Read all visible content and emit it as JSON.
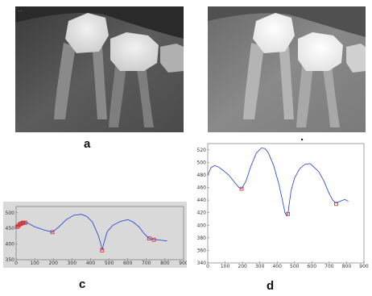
{
  "panels": {
    "a": {
      "label": "a"
    },
    "b": {
      "label": "b"
    },
    "c": {
      "label": "c"
    },
    "d": {
      "label": "d"
    }
  },
  "colors": {
    "curve": "#1f3fd6",
    "marker": "#d42a2a",
    "plot_bg_c": "#d9d9d9",
    "plot_bg_d": "#ffffff"
  },
  "chart_data": [
    {
      "panel": "c",
      "type": "line",
      "xlim": [
        0,
        900
      ],
      "ylim": [
        350,
        520
      ],
      "xticks": [
        0,
        100,
        200,
        300,
        400,
        500,
        600,
        700,
        800,
        900
      ],
      "yticks": [
        350,
        400,
        450,
        500
      ],
      "series": [
        {
          "x": [
            0,
            20,
            40,
            60,
            100,
            150,
            195,
            230,
            270,
            310,
            350,
            380,
            410,
            440,
            455,
            462,
            470,
            490,
            520,
            560,
            600,
            630,
            660,
            690,
            715,
            740,
            780,
            810
          ],
          "y": [
            455,
            462,
            468,
            468,
            455,
            445,
            438,
            455,
            478,
            492,
            495,
            488,
            470,
            430,
            400,
            380,
            400,
            440,
            460,
            472,
            478,
            470,
            455,
            432,
            418,
            415,
            412,
            410
          ]
        }
      ],
      "markers": {
        "x": [
          5,
          12,
          18,
          24,
          30,
          36,
          42,
          50,
          195,
          462,
          715,
          740
        ],
        "y": [
          455,
          458,
          462,
          465,
          466,
          468,
          468,
          468,
          438,
          380,
          418,
          414
        ]
      },
      "grid": false
    },
    {
      "panel": "d",
      "type": "line",
      "xlim": [
        0,
        900
      ],
      "ylim": [
        340,
        530
      ],
      "xticks": [
        0,
        100,
        200,
        300,
        400,
        500,
        600,
        700,
        800,
        900
      ],
      "yticks": [
        340,
        360,
        380,
        400,
        420,
        440,
        460,
        480,
        500,
        520
      ],
      "series": [
        {
          "x": [
            0,
            20,
            40,
            60,
            90,
            120,
            150,
            180,
            195,
            220,
            250,
            280,
            310,
            330,
            350,
            380,
            410,
            430,
            445,
            455,
            462,
            470,
            480,
            500,
            530,
            560,
            590,
            610,
            640,
            670,
            700,
            720,
            740,
            760,
            790,
            810
          ],
          "y": [
            480,
            492,
            495,
            493,
            487,
            480,
            470,
            460,
            458,
            470,
            495,
            515,
            523,
            522,
            515,
            495,
            465,
            440,
            420,
            415,
            418,
            435,
            455,
            475,
            490,
            497,
            498,
            493,
            485,
            470,
            450,
            440,
            435,
            438,
            441,
            438
          ]
        }
      ],
      "markers": {
        "x": [
          195,
          462,
          740
        ],
        "y": [
          458,
          418,
          434
        ]
      },
      "grid": false
    }
  ]
}
